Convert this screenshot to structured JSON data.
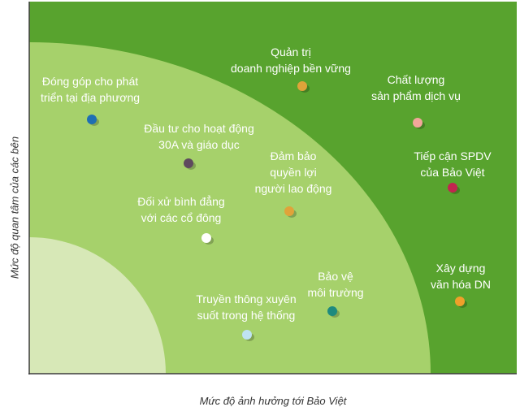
{
  "axes": {
    "y_label": "Mức độ quan tâm của các bên",
    "x_label": "Mức độ ảnh hưởng tới Bảo Việt"
  },
  "colors": {
    "outer_zone": "#58a32e",
    "middle_zone": "#a6d16b",
    "inner_zone": "#d7e8b7",
    "axis": "#3c3c3c",
    "text": "#ffffff"
  },
  "topics": [
    {
      "label_lines": [
        "Quản trị",
        "doanh nghiệp bền vững"
      ],
      "dot_color": "#e0a33a"
    },
    {
      "label_lines": [
        "Chất lượng",
        "sản phẩm dịch vụ"
      ],
      "dot_color": "#f2a79a"
    },
    {
      "label_lines": [
        "Tiếp cận SPDV",
        "của Bảo Việt"
      ],
      "dot_color": "#c2254f"
    },
    {
      "label_lines": [
        "Xây dựng",
        "văn hóa DN"
      ],
      "dot_color": "#f0a02a"
    },
    {
      "label_lines": [
        "Đóng góp cho phát",
        "triển tại địa phương"
      ],
      "dot_color": "#1f6fb3"
    },
    {
      "label_lines": [
        "Đầu tư cho hoạt động",
        "30A và giáo dục"
      ],
      "dot_color": "#5e4a5e"
    },
    {
      "label_lines": [
        "Đảm bảo",
        "quyền lợi",
        "người lao động"
      ],
      "dot_color": "#e0a33a"
    },
    {
      "label_lines": [
        "Đối xử bình đẳng",
        "với các cổ đông"
      ],
      "dot_color": "#ffffff"
    },
    {
      "label_lines": [
        "Bảo vệ",
        "môi trường"
      ],
      "dot_color": "#1e8a7e"
    },
    {
      "label_lines": [
        "Truyền thông xuyên",
        "suốt trong hệ thống"
      ],
      "dot_color": "#bfe3f2"
    }
  ]
}
